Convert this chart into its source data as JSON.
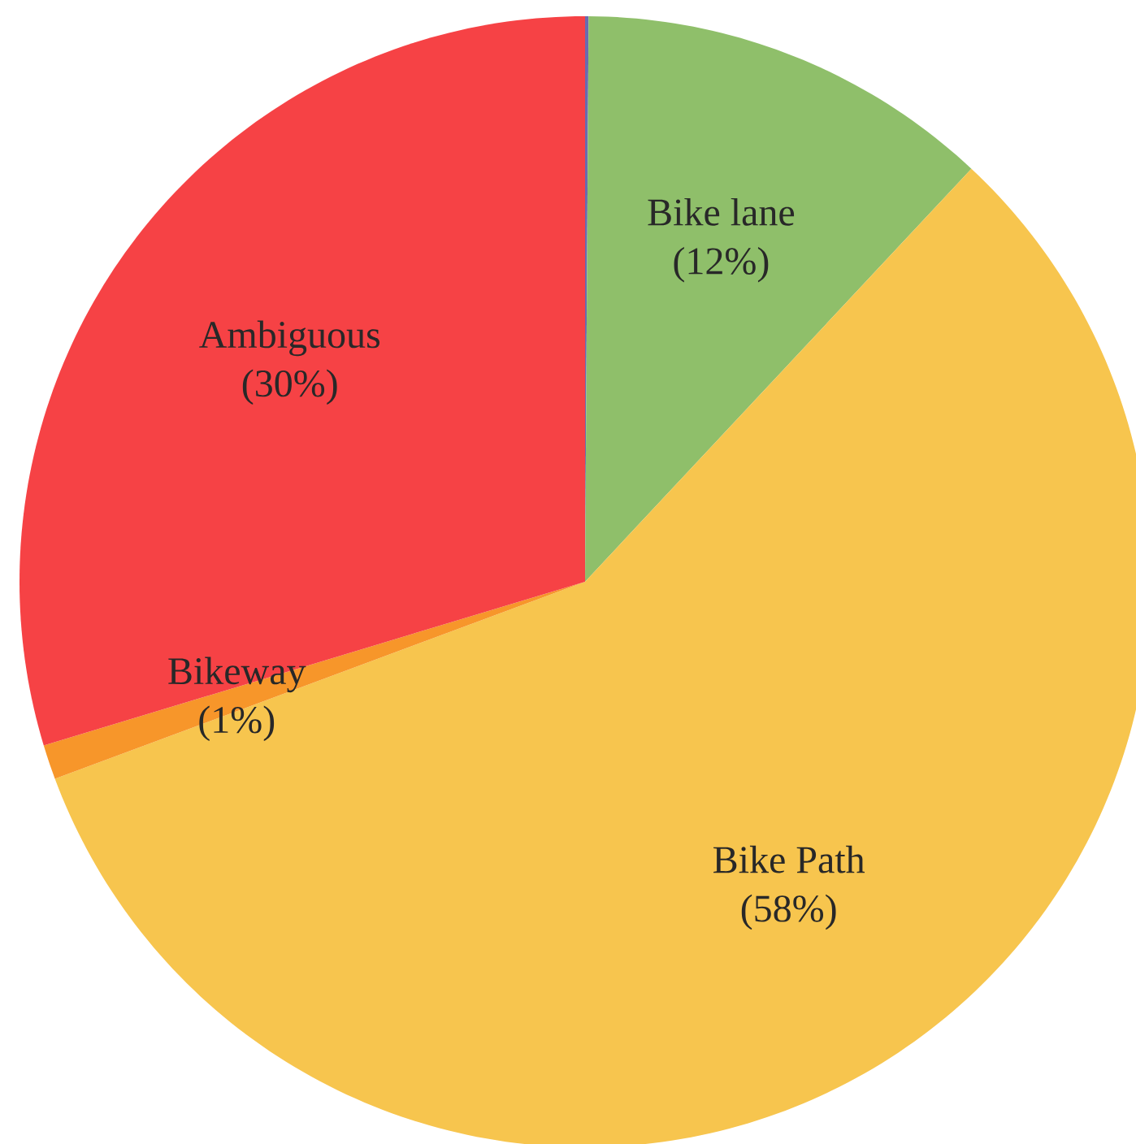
{
  "chart_data": {
    "type": "pie",
    "categories": [
      null,
      "Bike lane",
      "Bike Path",
      "Bikeway",
      "Ambiguous"
    ],
    "values": [
      0.1,
      12,
      58,
      1,
      30
    ],
    "colors": [
      "#6a6ab0",
      "#8fbf6a",
      "#f7c54e",
      "#f7962a",
      "#f64245"
    ],
    "value_labels": [
      null,
      "(12%)",
      "(58%)",
      "(1%)",
      "(30%)"
    ]
  }
}
